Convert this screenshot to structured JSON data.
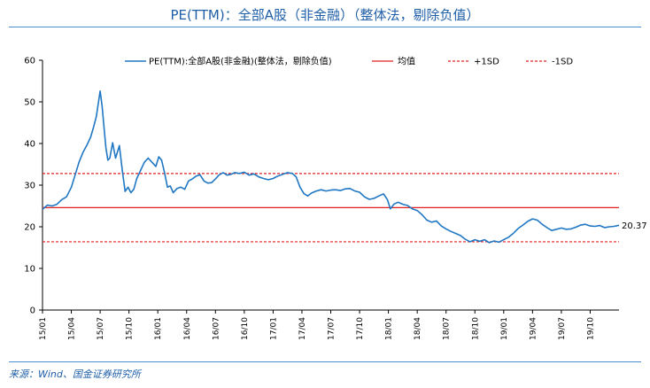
{
  "title": "PE(TTM)：全部A股（非金融）（整体法，剔除负值）",
  "source": "来源：Wind、国金证券研究所",
  "chart_data": {
    "type": "line",
    "ylim": [
      0,
      60
    ],
    "yticks": [
      0,
      10,
      20,
      30,
      40,
      50,
      60
    ],
    "x_categories": [
      "15/01",
      "15/04",
      "15/07",
      "15/10",
      "16/01",
      "16/04",
      "16/07",
      "16/10",
      "17/01",
      "17/04",
      "17/07",
      "17/10",
      "18/01",
      "18/04",
      "18/07",
      "18/10",
      "19/01",
      "19/04",
      "19/07",
      "19/10"
    ],
    "x_range_months": [
      0,
      60
    ],
    "legend": {
      "position": "top",
      "entries": [
        {
          "key": "pe",
          "label": "PE(TTM):全部A股(非金融)(整体法，剔除负值)",
          "color": "#1f77c4",
          "style": "solid"
        },
        {
          "key": "mean",
          "label": "均值",
          "color": "#e02020",
          "style": "solid"
        },
        {
          "key": "plus1sd",
          "label": "+1SD",
          "color": "#e02020",
          "style": "dashed"
        },
        {
          "key": "minus1sd",
          "label": "-1SD",
          "color": "#e02020",
          "style": "dashed"
        }
      ]
    },
    "reference_lines": {
      "mean": 24.6,
      "plus1sd": 32.8,
      "minus1sd": 16.4
    },
    "end_label": "20.37",
    "series": [
      {
        "key": "pe",
        "points": [
          [
            0,
            24.2
          ],
          [
            0.5,
            25.2
          ],
          [
            1,
            25.0
          ],
          [
            1.5,
            25.4
          ],
          [
            2,
            26.5
          ],
          [
            2.5,
            27.2
          ],
          [
            3,
            29.5
          ],
          [
            3.4,
            32.5
          ],
          [
            3.8,
            35.5
          ],
          [
            4.2,
            37.8
          ],
          [
            4.6,
            39.5
          ],
          [
            5,
            41.5
          ],
          [
            5.3,
            43.8
          ],
          [
            5.6,
            46.5
          ],
          [
            5.8,
            49.5
          ],
          [
            6.0,
            52.6
          ],
          [
            6.2,
            49.0
          ],
          [
            6.4,
            44.0
          ],
          [
            6.6,
            39.0
          ],
          [
            6.8,
            36.0
          ],
          [
            7.0,
            36.5
          ],
          [
            7.3,
            40.2
          ],
          [
            7.6,
            36.5
          ],
          [
            8.0,
            39.5
          ],
          [
            8.3,
            33.5
          ],
          [
            8.6,
            28.5
          ],
          [
            8.9,
            29.5
          ],
          [
            9.2,
            28.2
          ],
          [
            9.5,
            29.0
          ],
          [
            9.8,
            31.5
          ],
          [
            10.2,
            33.5
          ],
          [
            10.6,
            35.5
          ],
          [
            11.0,
            36.5
          ],
          [
            11.4,
            35.5
          ],
          [
            11.8,
            34.5
          ],
          [
            12.1,
            36.8
          ],
          [
            12.4,
            36.0
          ],
          [
            12.7,
            33.0
          ],
          [
            13.0,
            29.5
          ],
          [
            13.3,
            29.8
          ],
          [
            13.6,
            28.2
          ],
          [
            14.0,
            29.2
          ],
          [
            14.4,
            29.5
          ],
          [
            14.8,
            29.0
          ],
          [
            15.2,
            31.0
          ],
          [
            15.6,
            31.5
          ],
          [
            16.0,
            32.2
          ],
          [
            16.4,
            32.5
          ],
          [
            16.8,
            31.0
          ],
          [
            17.2,
            30.5
          ],
          [
            17.6,
            30.6
          ],
          [
            18.0,
            31.5
          ],
          [
            18.4,
            32.5
          ],
          [
            18.8,
            33.0
          ],
          [
            19.2,
            32.4
          ],
          [
            19.6,
            32.6
          ],
          [
            20.0,
            33.0
          ],
          [
            20.5,
            32.8
          ],
          [
            21.0,
            33.1
          ],
          [
            21.5,
            32.4
          ],
          [
            22.0,
            32.7
          ],
          [
            22.5,
            32.0
          ],
          [
            23.0,
            31.6
          ],
          [
            23.5,
            31.3
          ],
          [
            24.0,
            31.6
          ],
          [
            24.5,
            32.2
          ],
          [
            25.0,
            32.6
          ],
          [
            25.5,
            33.0
          ],
          [
            26.0,
            32.8
          ],
          [
            26.4,
            32.0
          ],
          [
            26.8,
            29.5
          ],
          [
            27.2,
            28.0
          ],
          [
            27.6,
            27.4
          ],
          [
            28.0,
            28.1
          ],
          [
            28.5,
            28.6
          ],
          [
            29.0,
            28.9
          ],
          [
            29.5,
            28.6
          ],
          [
            30.0,
            28.8
          ],
          [
            30.5,
            28.9
          ],
          [
            31.0,
            28.7
          ],
          [
            31.5,
            29.1
          ],
          [
            32.0,
            29.2
          ],
          [
            32.5,
            28.6
          ],
          [
            33.0,
            28.3
          ],
          [
            33.5,
            27.2
          ],
          [
            34.0,
            26.6
          ],
          [
            34.5,
            26.8
          ],
          [
            35.0,
            27.4
          ],
          [
            35.5,
            27.9
          ],
          [
            35.9,
            26.5
          ],
          [
            36.2,
            24.3
          ],
          [
            36.6,
            25.5
          ],
          [
            37.0,
            25.9
          ],
          [
            37.5,
            25.4
          ],
          [
            38.0,
            25.1
          ],
          [
            38.5,
            24.3
          ],
          [
            39.0,
            23.9
          ],
          [
            39.5,
            22.9
          ],
          [
            40.0,
            21.6
          ],
          [
            40.5,
            21.1
          ],
          [
            41.0,
            21.4
          ],
          [
            41.5,
            20.2
          ],
          [
            42.0,
            19.5
          ],
          [
            42.5,
            18.9
          ],
          [
            43.0,
            18.4
          ],
          [
            43.5,
            17.9
          ],
          [
            44.0,
            17.0
          ],
          [
            44.5,
            16.4
          ],
          [
            45.0,
            16.9
          ],
          [
            45.5,
            16.5
          ],
          [
            46.0,
            16.9
          ],
          [
            46.5,
            16.2
          ],
          [
            47.0,
            16.6
          ],
          [
            47.5,
            16.3
          ],
          [
            48.0,
            16.9
          ],
          [
            48.5,
            17.5
          ],
          [
            49.0,
            18.4
          ],
          [
            49.5,
            19.6
          ],
          [
            50.0,
            20.4
          ],
          [
            50.5,
            21.3
          ],
          [
            51.0,
            21.9
          ],
          [
            51.5,
            21.6
          ],
          [
            52.0,
            20.6
          ],
          [
            52.5,
            19.8
          ],
          [
            53.0,
            19.1
          ],
          [
            53.5,
            19.4
          ],
          [
            54.0,
            19.7
          ],
          [
            54.5,
            19.4
          ],
          [
            55.0,
            19.5
          ],
          [
            55.5,
            19.9
          ],
          [
            56.0,
            20.4
          ],
          [
            56.5,
            20.6
          ],
          [
            57.0,
            20.2
          ],
          [
            57.5,
            20.1
          ],
          [
            58.0,
            20.3
          ],
          [
            58.5,
            19.8
          ],
          [
            59.0,
            20.0
          ],
          [
            59.5,
            20.1
          ],
          [
            60.0,
            20.37
          ]
        ]
      }
    ]
  }
}
